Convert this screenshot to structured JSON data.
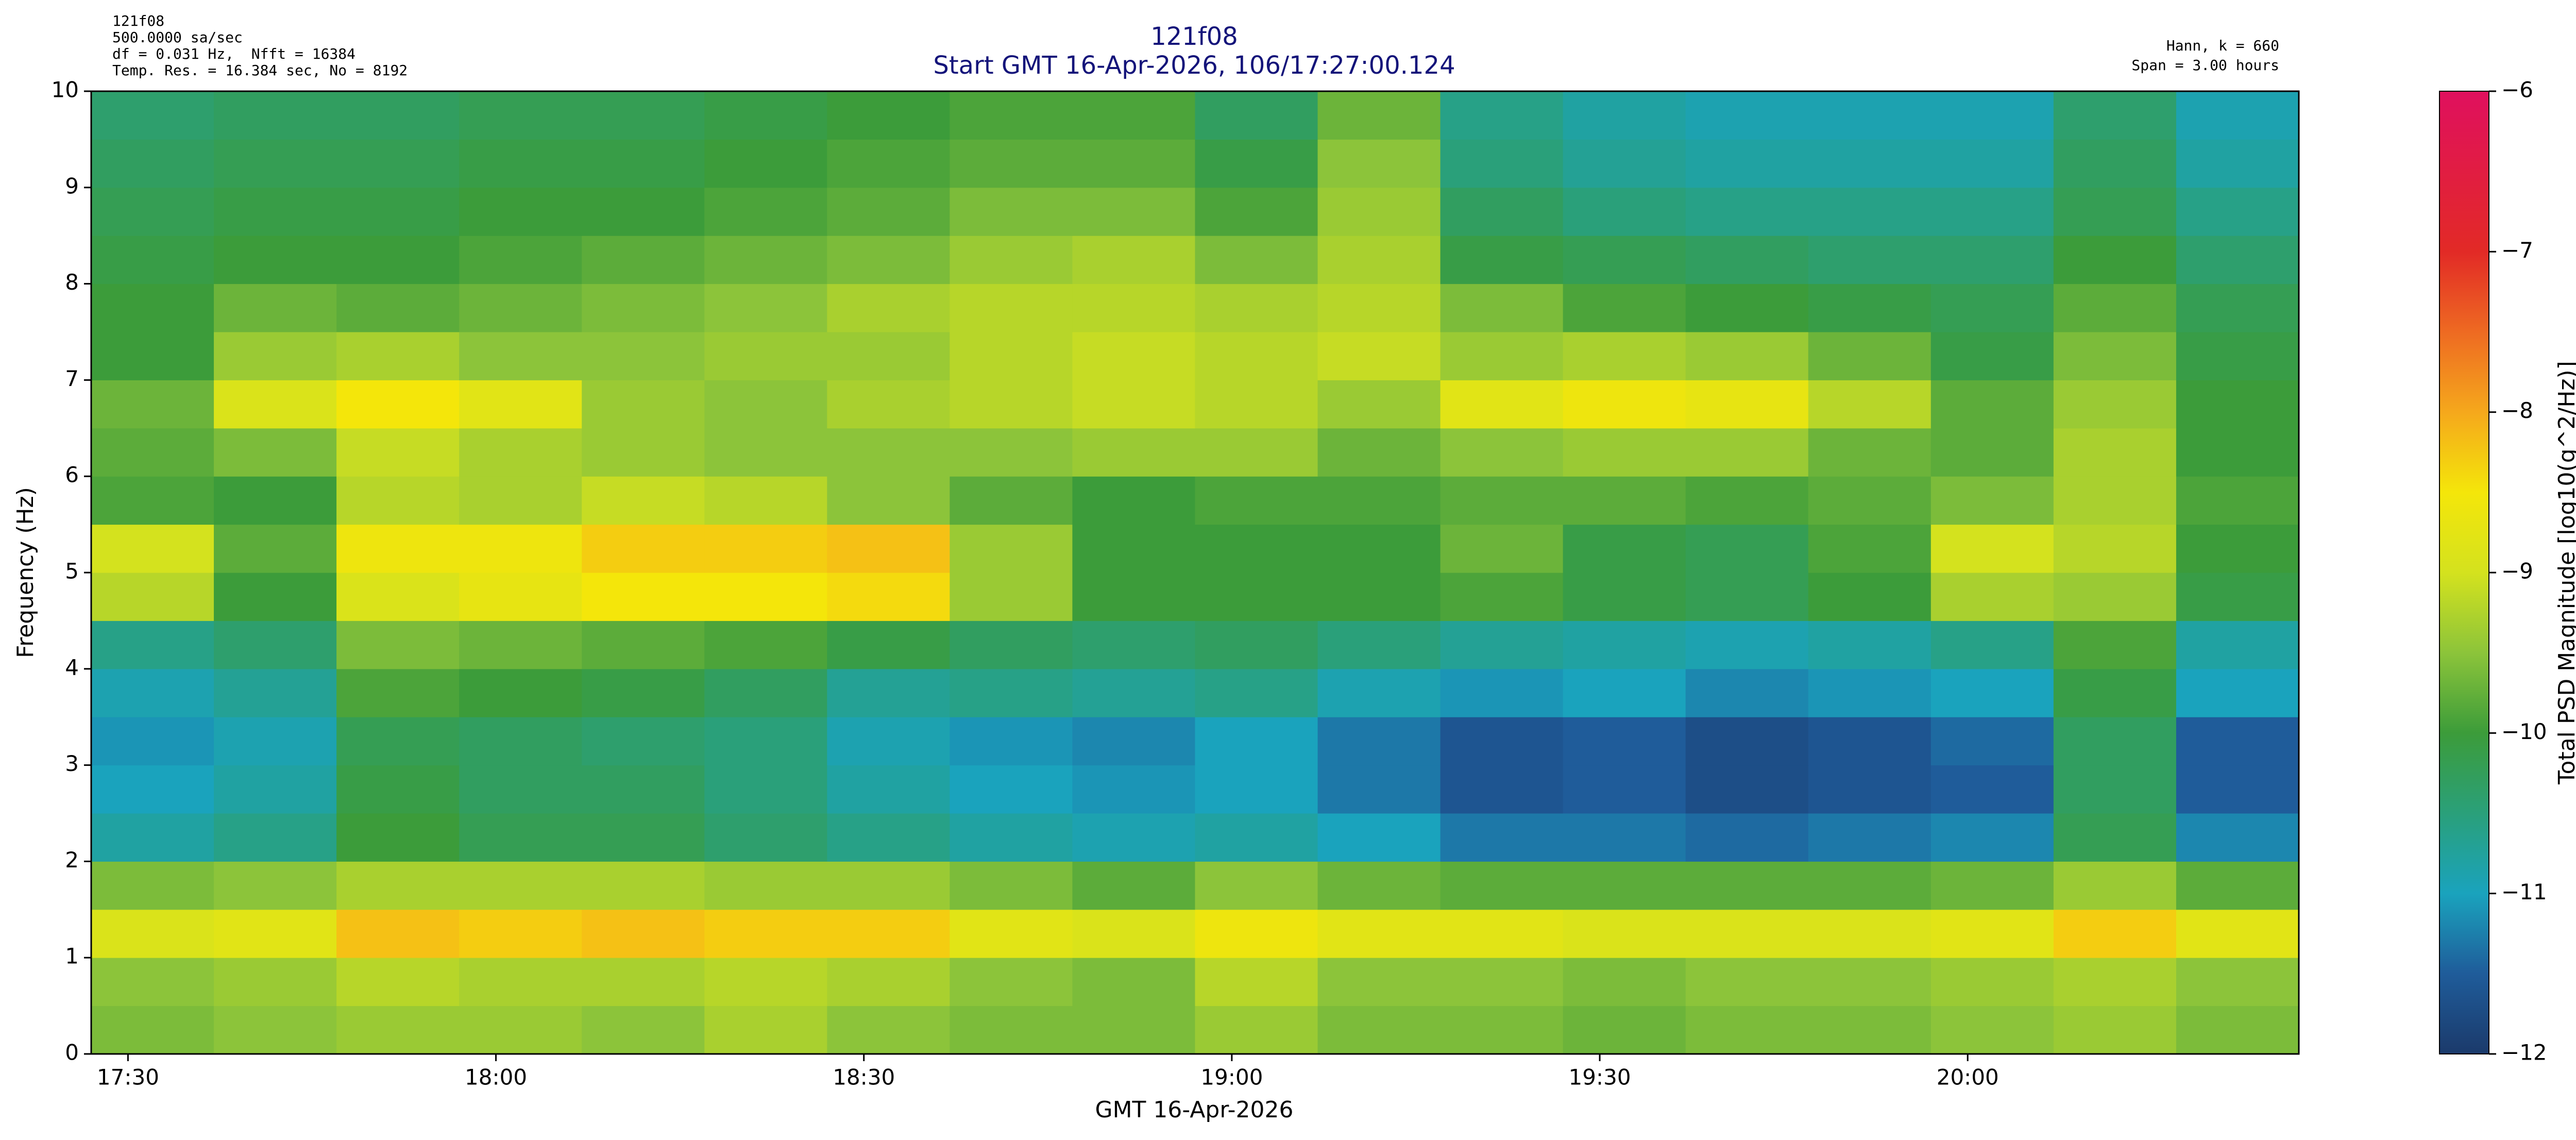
{
  "chart_data": {
    "type": "heatmap",
    "title": "121f08",
    "subtitle": "Start GMT 16-Apr-2026, 106/17:27:00.124",
    "info_left": [
      "121f08",
      "500.0000 sa/sec",
      "df = 0.031 Hz,  Nfft = 16384",
      "Temp. Res. = 16.384 sec, No = 8192"
    ],
    "info_right": [
      "Hann, k = 660",
      "Span = 3.00 hours"
    ],
    "x_label": "GMT 16-Apr-2026",
    "y_label": "Frequency (Hz)",
    "colorbar_label": "Total PSD Magnitude [log10(g^2/Hz)]",
    "xlim": [
      1047,
      1227
    ],
    "xticks": [
      {
        "value": 1050,
        "label": "17:30"
      },
      {
        "value": 1080,
        "label": "18:00"
      },
      {
        "value": 1110,
        "label": "18:30"
      },
      {
        "value": 1140,
        "label": "19:00"
      },
      {
        "value": 1170,
        "label": "19:30"
      },
      {
        "value": 1200,
        "label": "20:00"
      }
    ],
    "ylim": [
      0,
      10
    ],
    "yticks": [
      0,
      1,
      2,
      3,
      4,
      5,
      6,
      7,
      8,
      9,
      10
    ],
    "zlim": [
      -12,
      -6
    ],
    "zticks": [
      {
        "value": -12,
        "label": "−12"
      },
      {
        "value": -11,
        "label": "−11"
      },
      {
        "value": -10,
        "label": "−10"
      },
      {
        "value": -9,
        "label": "−9"
      },
      {
        "value": -8,
        "label": "−8"
      },
      {
        "value": -7,
        "label": "−7"
      },
      {
        "value": -6,
        "label": "−6"
      }
    ],
    "colorscale": [
      {
        "value": -12,
        "color": "#1b3a6b"
      },
      {
        "value": -11.5,
        "color": "#1f5c9a"
      },
      {
        "value": -11,
        "color": "#1aa3bd"
      },
      {
        "value": -10.5,
        "color": "#2aa07a"
      },
      {
        "value": -10,
        "color": "#3c9c3a"
      },
      {
        "value": -9.5,
        "color": "#8cc43a"
      },
      {
        "value": -9,
        "color": "#d4e21e"
      },
      {
        "value": -8.5,
        "color": "#f4e60a"
      },
      {
        "value": -8,
        "color": "#f5a81c"
      },
      {
        "value": -7.5,
        "color": "#ee6a22"
      },
      {
        "value": -7,
        "color": "#e22a26"
      },
      {
        "value": -6,
        "color": "#e0105e"
      }
    ],
    "x": [
      1052,
      1062,
      1072,
      1082,
      1092,
      1102,
      1112,
      1122,
      1132,
      1142,
      1152,
      1162,
      1172,
      1182,
      1192,
      1202,
      1212,
      1222
    ],
    "y": [
      0.25,
      0.75,
      1.25,
      1.75,
      2.25,
      2.75,
      3.25,
      3.75,
      4.25,
      4.75,
      5.25,
      5.75,
      6.25,
      6.75,
      7.25,
      7.75,
      8.25,
      8.75,
      9.25,
      9.75
    ],
    "values": [
      [
        -9.6,
        -9.5,
        -9.4,
        -9.4,
        -9.5,
        -9.3,
        -9.5,
        -9.6,
        -9.6,
        -9.4,
        -9.6,
        -9.6,
        -9.7,
        -9.6,
        -9.6,
        -9.5,
        -9.4,
        -9.6
      ],
      [
        -9.5,
        -9.4,
        -9.2,
        -9.3,
        -9.3,
        -9.2,
        -9.3,
        -9.5,
        -9.6,
        -9.2,
        -9.5,
        -9.5,
        -9.6,
        -9.5,
        -9.5,
        -9.4,
        -9.3,
        -9.5
      ],
      [
        -8.9,
        -8.8,
        -8.2,
        -8.3,
        -8.2,
        -8.3,
        -8.3,
        -8.8,
        -8.9,
        -8.6,
        -8.8,
        -8.8,
        -8.9,
        -8.9,
        -8.9,
        -8.8,
        -8.3,
        -8.8
      ],
      [
        -9.6,
        -9.5,
        -9.3,
        -9.3,
        -9.3,
        -9.4,
        -9.4,
        -9.6,
        -9.8,
        -9.5,
        -9.7,
        -9.8,
        -9.8,
        -9.8,
        -9.8,
        -9.7,
        -9.4,
        -9.8
      ],
      [
        -10.8,
        -10.6,
        -10.0,
        -10.2,
        -10.2,
        -10.4,
        -10.6,
        -10.8,
        -10.9,
        -10.8,
        -11.0,
        -11.3,
        -11.3,
        -11.4,
        -11.3,
        -11.2,
        -10.2,
        -11.2
      ],
      [
        -11.0,
        -10.8,
        -10.1,
        -10.3,
        -10.3,
        -10.5,
        -10.8,
        -11.0,
        -11.1,
        -11.0,
        -11.3,
        -11.6,
        -11.5,
        -11.7,
        -11.6,
        -11.5,
        -10.3,
        -11.5
      ],
      [
        -11.1,
        -10.9,
        -10.2,
        -10.3,
        -10.4,
        -10.5,
        -10.9,
        -11.1,
        -11.2,
        -11.0,
        -11.3,
        -11.6,
        -11.5,
        -11.7,
        -11.6,
        -11.4,
        -10.3,
        -11.5
      ],
      [
        -10.9,
        -10.7,
        -9.9,
        -10.0,
        -10.1,
        -10.3,
        -10.7,
        -10.6,
        -10.7,
        -10.6,
        -10.9,
        -11.1,
        -11.0,
        -11.2,
        -11.1,
        -11.0,
        -10.1,
        -11.0
      ],
      [
        -10.6,
        -10.4,
        -9.6,
        -9.7,
        -9.8,
        -9.9,
        -10.1,
        -10.3,
        -10.4,
        -10.3,
        -10.5,
        -10.7,
        -10.8,
        -10.9,
        -10.8,
        -10.6,
        -9.9,
        -10.8
      ],
      [
        -9.2,
        -10.0,
        -8.9,
        -8.7,
        -8.5,
        -8.5,
        -8.4,
        -9.4,
        -10.0,
        -10.0,
        -10.0,
        -9.9,
        -10.1,
        -10.2,
        -10.0,
        -9.3,
        -9.4,
        -10.1
      ],
      [
        -9.0,
        -9.8,
        -8.6,
        -8.6,
        -8.3,
        -8.3,
        -8.2,
        -9.4,
        -10.0,
        -10.0,
        -10.0,
        -9.7,
        -10.1,
        -10.2,
        -9.9,
        -9.0,
        -9.2,
        -10.0
      ],
      [
        -9.9,
        -10.0,
        -9.2,
        -9.3,
        -9.1,
        -9.2,
        -9.5,
        -9.8,
        -10.0,
        -9.9,
        -9.9,
        -9.8,
        -9.8,
        -9.9,
        -9.8,
        -9.6,
        -9.3,
        -9.9
      ],
      [
        -9.8,
        -9.6,
        -9.1,
        -9.3,
        -9.4,
        -9.5,
        -9.5,
        -9.5,
        -9.4,
        -9.4,
        -9.7,
        -9.5,
        -9.4,
        -9.4,
        -9.7,
        -9.8,
        -9.3,
        -10.0
      ],
      [
        -9.7,
        -8.9,
        -8.5,
        -8.8,
        -9.4,
        -9.5,
        -9.3,
        -9.2,
        -9.1,
        -9.2,
        -9.4,
        -8.8,
        -8.6,
        -8.7,
        -9.2,
        -9.8,
        -9.4,
        -10.0
      ],
      [
        -10.0,
        -9.4,
        -9.3,
        -9.5,
        -9.5,
        -9.4,
        -9.4,
        -9.2,
        -9.1,
        -9.2,
        -9.1,
        -9.4,
        -9.3,
        -9.4,
        -9.7,
        -10.1,
        -9.6,
        -10.1
      ],
      [
        -10.0,
        -9.7,
        -9.8,
        -9.7,
        -9.6,
        -9.5,
        -9.3,
        -9.2,
        -9.2,
        -9.3,
        -9.2,
        -9.6,
        -9.9,
        -10.0,
        -10.1,
        -10.2,
        -9.8,
        -10.2
      ],
      [
        -10.1,
        -10.0,
        -10.0,
        -9.9,
        -9.8,
        -9.7,
        -9.6,
        -9.4,
        -9.3,
        -9.6,
        -9.3,
        -10.1,
        -10.2,
        -10.3,
        -10.4,
        -10.4,
        -10.0,
        -10.4
      ],
      [
        -10.2,
        -10.1,
        -10.1,
        -10.0,
        -10.0,
        -9.9,
        -9.8,
        -9.6,
        -9.6,
        -9.9,
        -9.4,
        -10.3,
        -10.5,
        -10.6,
        -10.6,
        -10.6,
        -10.2,
        -10.6
      ],
      [
        -10.3,
        -10.2,
        -10.2,
        -10.1,
        -10.1,
        -10.0,
        -9.9,
        -9.8,
        -9.8,
        -10.1,
        -9.5,
        -10.5,
        -10.7,
        -10.8,
        -10.8,
        -10.8,
        -10.3,
        -10.8
      ],
      [
        -10.4,
        -10.3,
        -10.3,
        -10.2,
        -10.2,
        -10.1,
        -10.0,
        -9.9,
        -9.9,
        -10.3,
        -9.7,
        -10.6,
        -10.8,
        -10.9,
        -10.9,
        -10.9,
        -10.4,
        -10.9
      ]
    ]
  }
}
